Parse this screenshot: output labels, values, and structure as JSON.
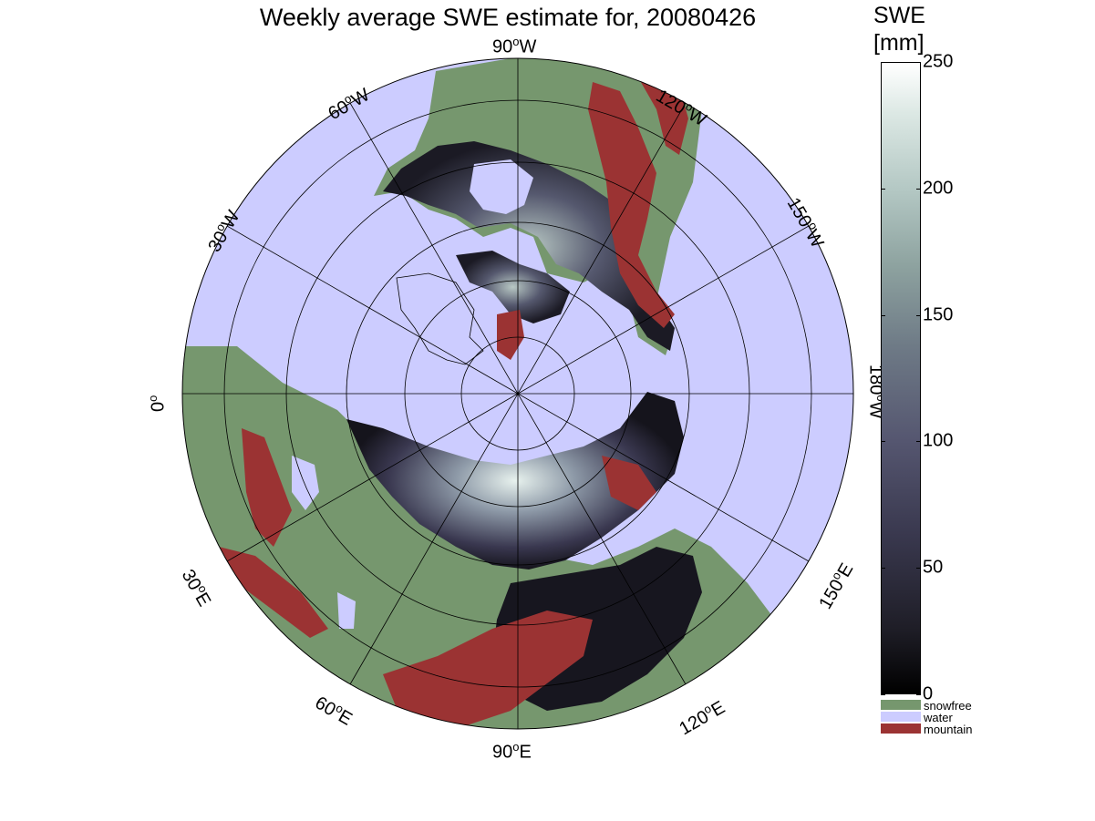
{
  "title": "Weekly average SWE estimate for, 20080426",
  "colorbar": {
    "title_line1": "SWE",
    "title_line2": "[mm]",
    "ticks": [
      {
        "value": 0,
        "label": "0"
      },
      {
        "value": 50,
        "label": "50"
      },
      {
        "value": 100,
        "label": "100"
      },
      {
        "value": 150,
        "label": "150"
      },
      {
        "value": 200,
        "label": "200"
      },
      {
        "value": 250,
        "label": "250"
      }
    ],
    "range": [
      0,
      250
    ],
    "categories": [
      {
        "label": "snowfree",
        "color": "#76976e"
      },
      {
        "label": "water",
        "color": "#ccccff"
      },
      {
        "label": "mountain",
        "color": "#9b3333"
      }
    ]
  },
  "map": {
    "projection": "north polar stereographic",
    "ocean_color": "#ccccff",
    "land_color": "#76976e",
    "mountain_color": "#9b3333",
    "longitude_labels": [
      {
        "id": "lon-90w",
        "text": "90",
        "suffix": "W"
      },
      {
        "id": "lon-120w",
        "text": "120",
        "suffix": "W"
      },
      {
        "id": "lon-60w",
        "text": "60",
        "suffix": "W"
      },
      {
        "id": "lon-150w",
        "text": "150",
        "suffix": "W"
      },
      {
        "id": "lon-30w",
        "text": "30",
        "suffix": "W"
      },
      {
        "id": "lon-0",
        "text": "0",
        "suffix": ""
      },
      {
        "id": "lon-180w",
        "text": "180",
        "suffix": "W"
      },
      {
        "id": "lon-30e",
        "text": "30",
        "suffix": "E"
      },
      {
        "id": "lon-150e",
        "text": "150",
        "suffix": "E"
      },
      {
        "id": "lon-60e",
        "text": "60",
        "suffix": "E"
      },
      {
        "id": "lon-120e",
        "text": "120",
        "suffix": "E"
      },
      {
        "id": "lon-90e",
        "text": "90",
        "suffix": "E"
      }
    ]
  }
}
